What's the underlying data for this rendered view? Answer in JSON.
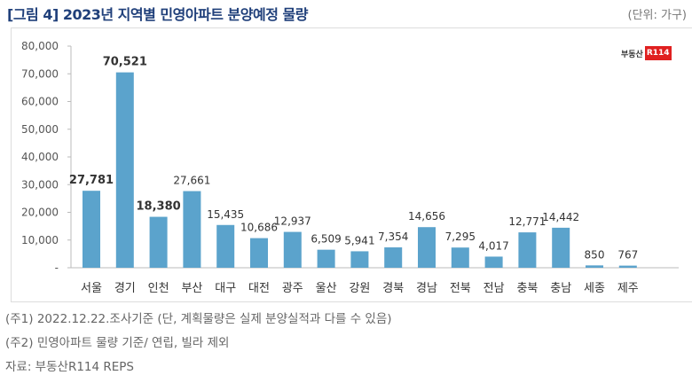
{
  "header": {
    "title": "[그림 4] 2023년 지역별 민영아파트 분양예정 물량",
    "unit": "(단위: 가구)"
  },
  "logo": {
    "text": "부동산",
    "badge": "R114"
  },
  "chart_data": {
    "type": "bar",
    "categories": [
      "서울",
      "경기",
      "인천",
      "부산",
      "대구",
      "대전",
      "광주",
      "울산",
      "강원",
      "경북",
      "경남",
      "전북",
      "전남",
      "충북",
      "충남",
      "세종",
      "제주"
    ],
    "values": [
      27781,
      70521,
      18380,
      27661,
      15435,
      10686,
      12937,
      6509,
      5941,
      7354,
      14656,
      7295,
      4017,
      12771,
      14442,
      850,
      767
    ],
    "ylim": [
      0,
      80000
    ],
    "yticks": [
      "-",
      "10,000",
      "20,000",
      "30,000",
      "40,000",
      "50,000",
      "60,000",
      "70,000",
      "80,000"
    ],
    "data_labels": [
      "27,781",
      "70,521",
      "18,380",
      "27,661",
      "15,435",
      "10,686",
      "12,937",
      "6,509",
      "5,941",
      "7,354",
      "14,656",
      "7,295",
      "4,017",
      "12,771",
      "14,442",
      "850",
      "767"
    ],
    "bar_color": "#5ba3cc",
    "grid": false,
    "legend": "none"
  },
  "notes": [
    "(주1) 2022.12.22.조사기준 (단, 계획물량은 실제 분양실적과 다를 수 있음)",
    "(주2) 민영아파트 물량 기준/ 연립, 빌라 제외",
    "자료: 부동산R114 REPS"
  ]
}
